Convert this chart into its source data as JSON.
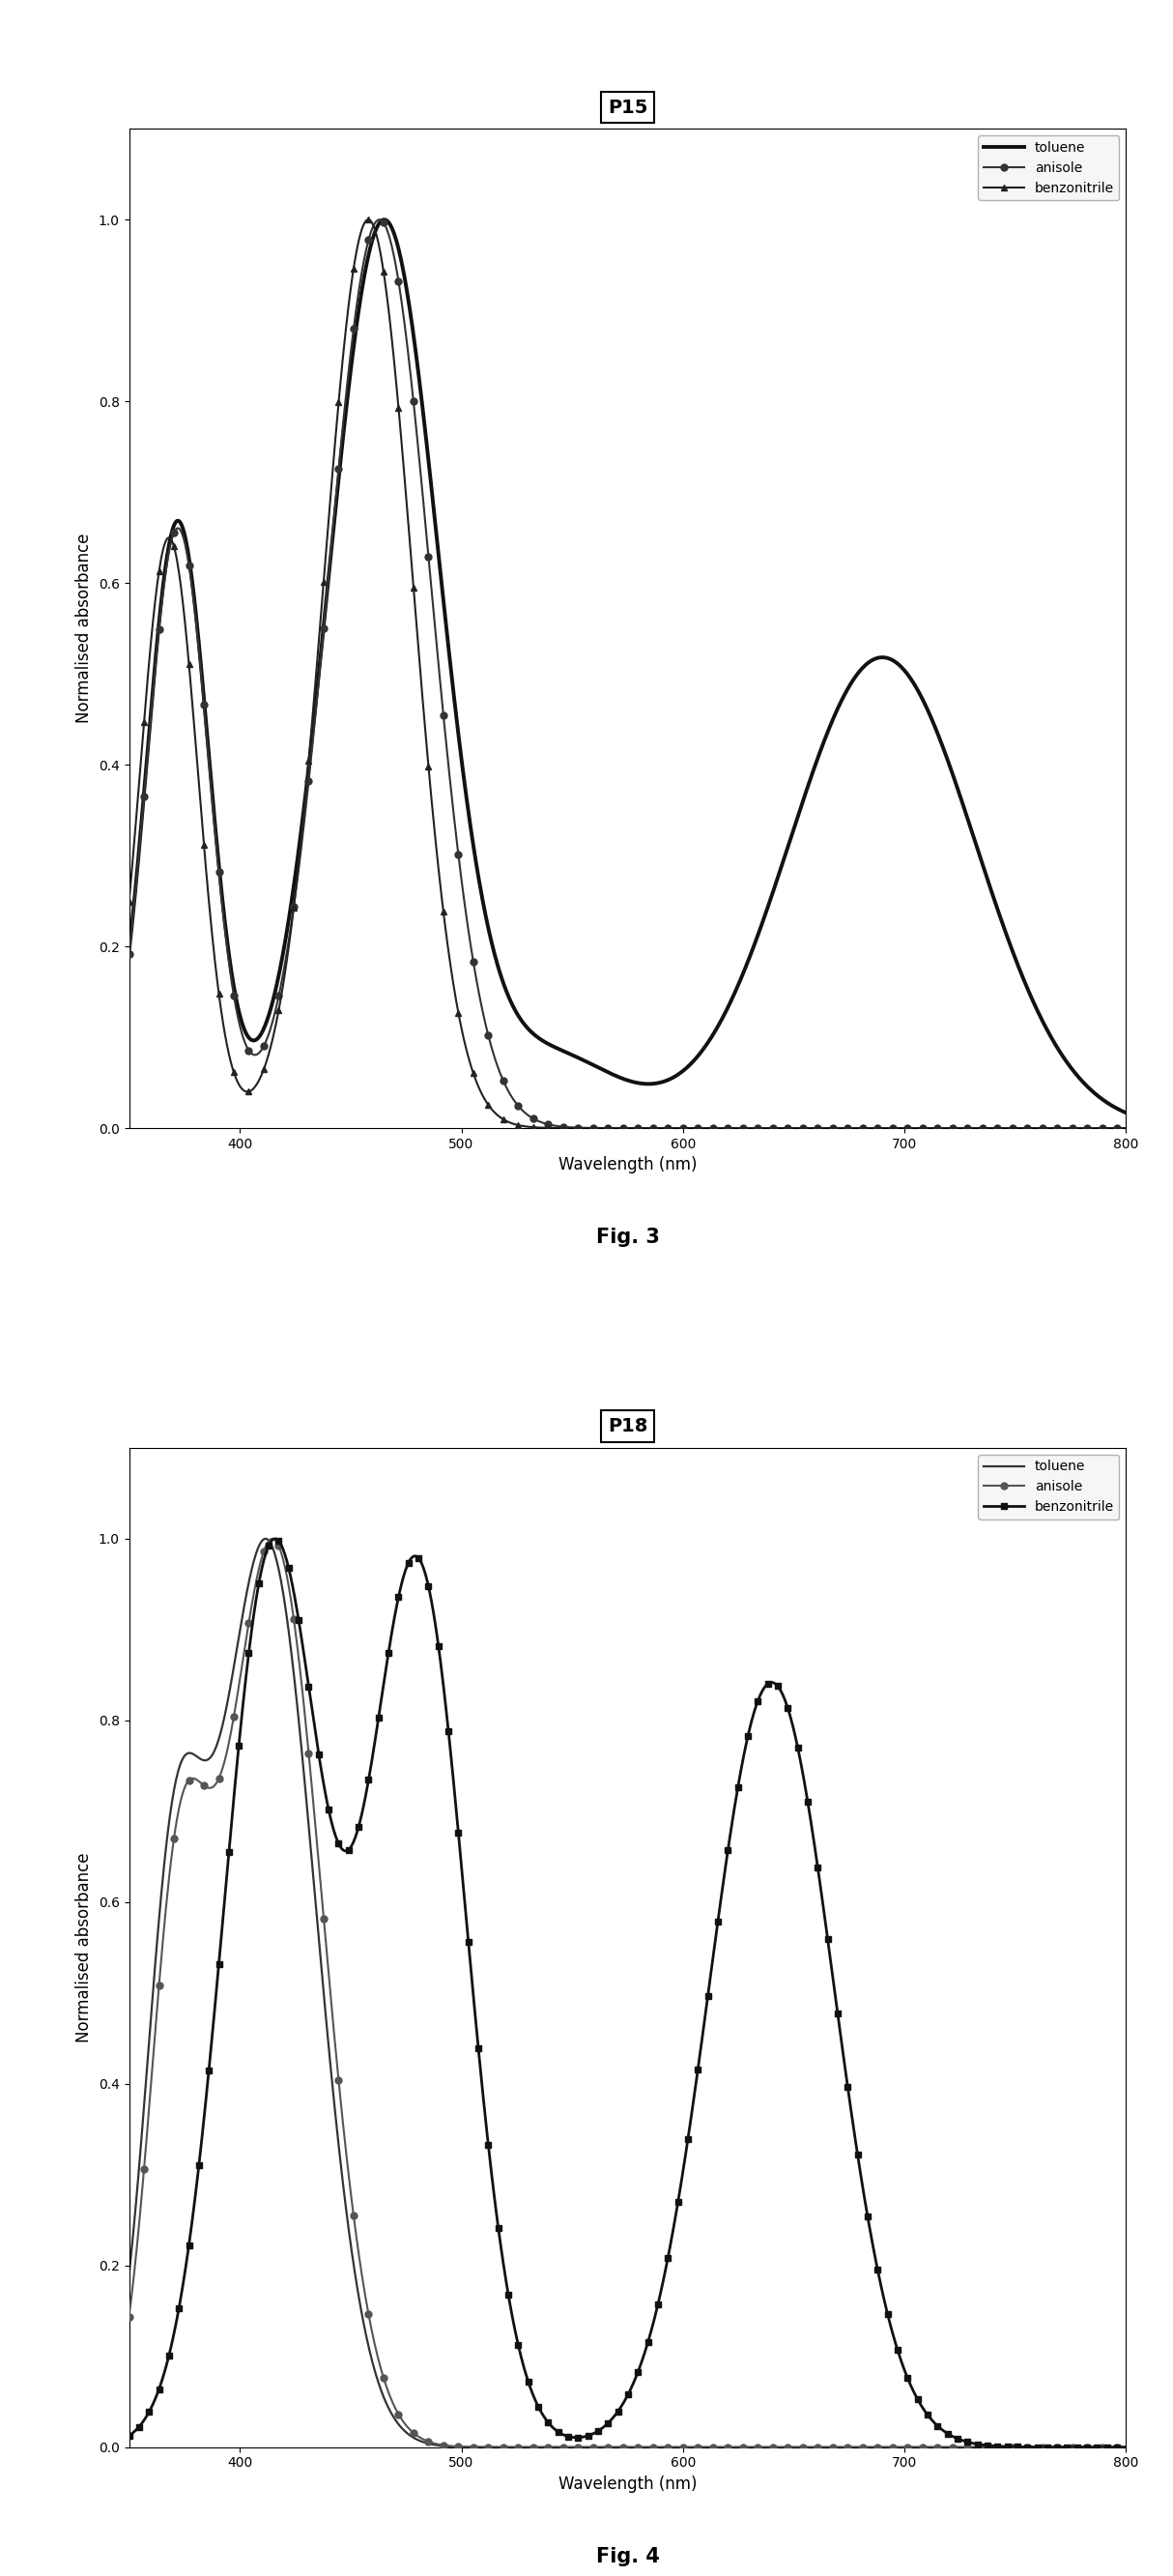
{
  "fig3": {
    "title": "P15",
    "xlabel": "Wavelength (nm)",
    "ylabel": "Normalised absorbance",
    "fig_label": "Fig. 3",
    "xlim": [
      350,
      800
    ],
    "ylim": [
      0.0,
      1.1
    ],
    "yticks": [
      0.0,
      0.2,
      0.4,
      0.6,
      0.8,
      1.0
    ],
    "xticks": [
      400,
      500,
      600,
      700,
      800
    ],
    "series": {
      "toluene": {
        "color": "#111111",
        "linewidth": 2.8,
        "linestyle": "-",
        "marker": null,
        "zorder": 2
      },
      "anisole": {
        "color": "#333333",
        "linewidth": 1.5,
        "linestyle": "-",
        "marker": "o",
        "markersize": 5,
        "markevery": 15,
        "zorder": 3
      },
      "benzonitrile": {
        "color": "#222222",
        "linewidth": 1.5,
        "linestyle": "-",
        "marker": "^",
        "markersize": 5,
        "markevery": 15,
        "zorder": 4
      }
    }
  },
  "fig4": {
    "title": "P18",
    "xlabel": "Wavelength (nm)",
    "ylabel": "Normalised absorbance",
    "fig_label": "Fig. 4",
    "xlim": [
      350,
      800
    ],
    "ylim": [
      0.0,
      1.1
    ],
    "yticks": [
      0.0,
      0.2,
      0.4,
      0.6,
      0.8,
      1.0
    ],
    "xticks": [
      400,
      500,
      600,
      700,
      800
    ],
    "series": {
      "toluene": {
        "color": "#333333",
        "linewidth": 1.6,
        "linestyle": "-",
        "marker": null,
        "zorder": 2
      },
      "anisole": {
        "color": "#555555",
        "linewidth": 1.5,
        "linestyle": "-",
        "marker": "o",
        "markersize": 5,
        "markevery": 15,
        "zorder": 3
      },
      "benzonitrile": {
        "color": "#111111",
        "linewidth": 2.0,
        "linestyle": "-",
        "marker": "s",
        "markersize": 4,
        "markevery": 10,
        "zorder": 4
      }
    }
  },
  "background_color": "#ffffff",
  "legend_fontsize": 10,
  "axis_fontsize": 12,
  "title_fontsize": 14,
  "fig_label_fontsize": 15
}
